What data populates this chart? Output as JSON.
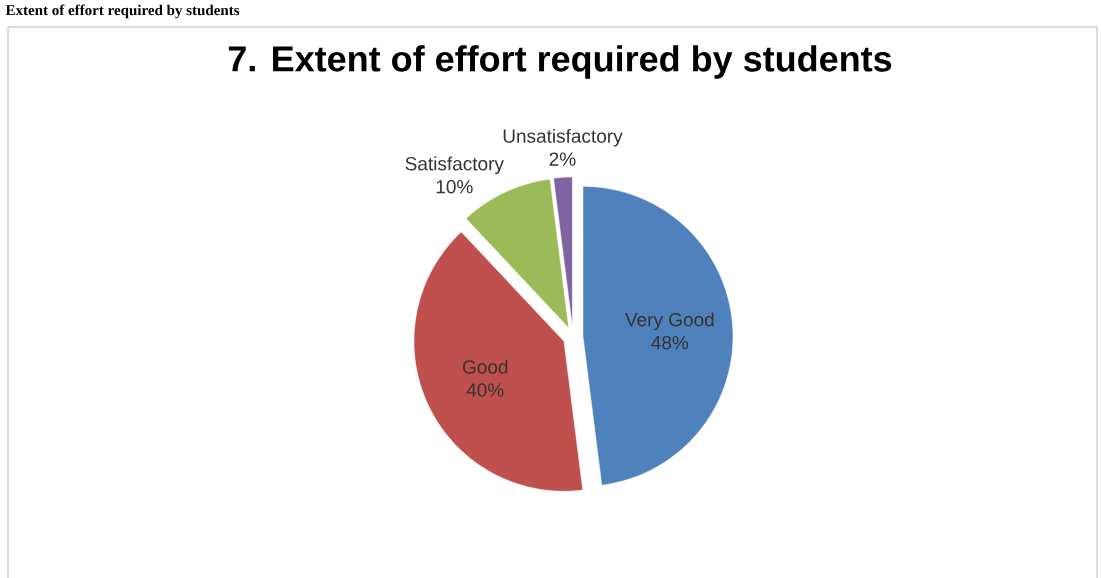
{
  "chart_data": {
    "type": "pie",
    "title": "7. Extent of effort required by students",
    "categories": [
      "Very Good",
      "Good",
      "Satisfactory",
      "Unsatisfactory"
    ],
    "values": [
      48,
      40,
      10,
      2
    ],
    "colors": [
      "#4f81bd",
      "#c0504d",
      "#9bbb59",
      "#8064a2"
    ],
    "value_labels": [
      "48%",
      "40%",
      "10%",
      "2%"
    ],
    "annotations": [
      "Extent of effort required by students"
    ]
  }
}
